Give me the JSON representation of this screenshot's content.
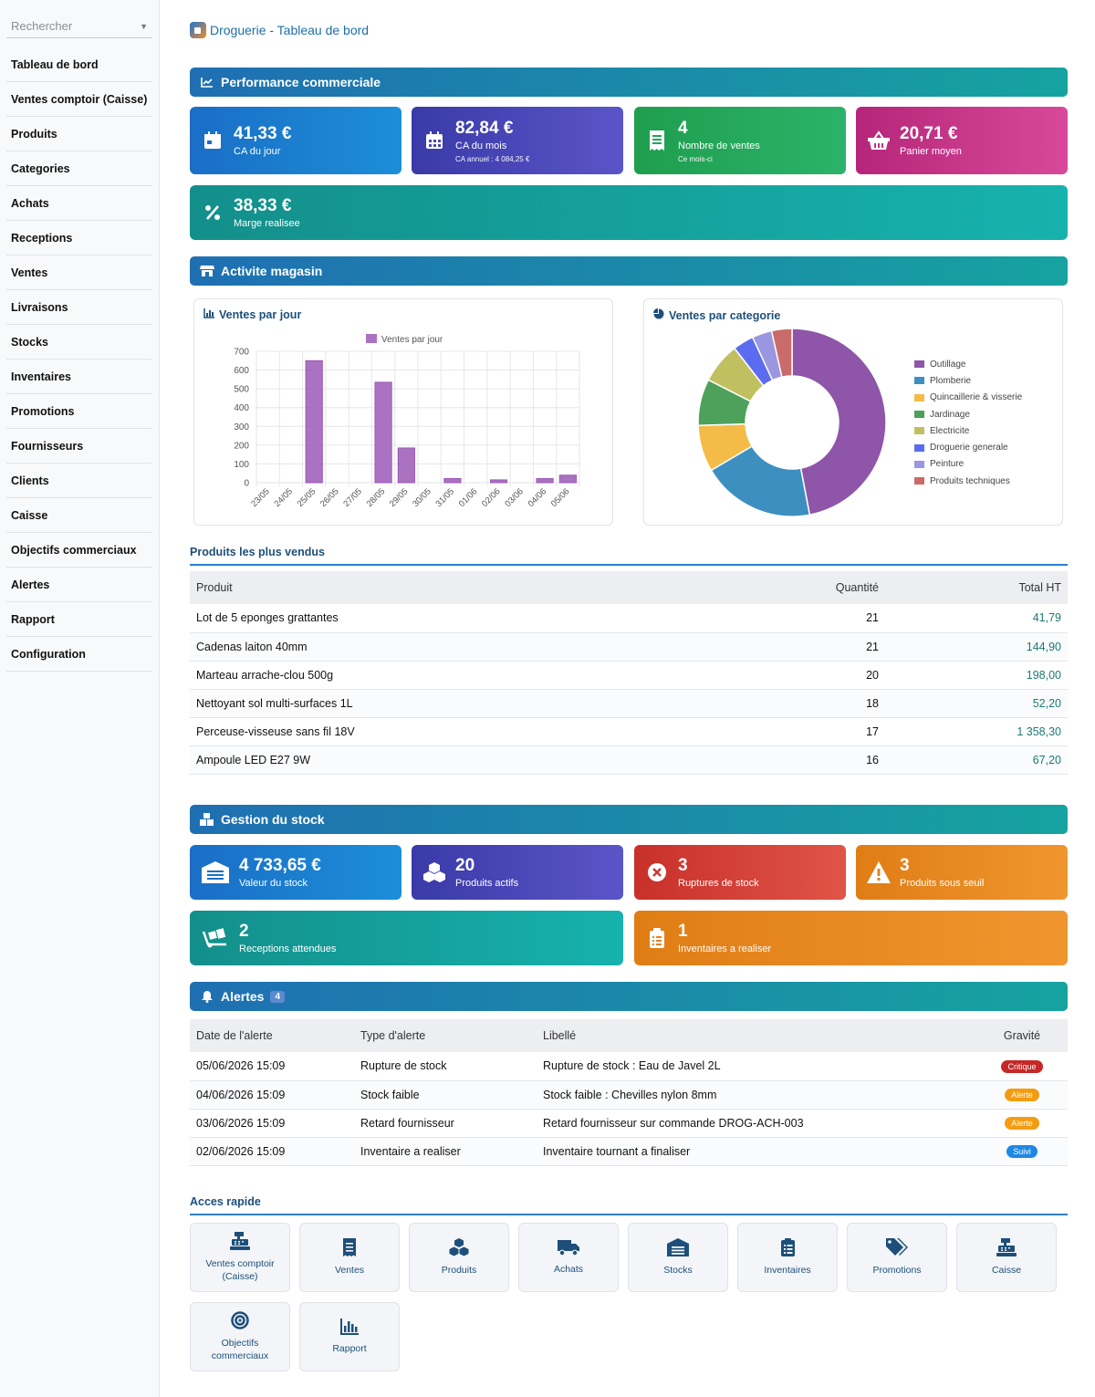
{
  "sidebar": {
    "search_placeholder": "Rechercher",
    "items": [
      {
        "label": "Tableau de bord"
      },
      {
        "label": "Ventes comptoir (Caisse)"
      },
      {
        "label": "Produits"
      },
      {
        "label": "Categories"
      },
      {
        "label": "Achats"
      },
      {
        "label": "Receptions"
      },
      {
        "label": "Ventes"
      },
      {
        "label": "Livraisons"
      },
      {
        "label": "Stocks"
      },
      {
        "label": "Inventaires"
      },
      {
        "label": "Promotions"
      },
      {
        "label": "Fournisseurs"
      },
      {
        "label": "Clients"
      },
      {
        "label": "Caisse"
      },
      {
        "label": "Objectifs commerciaux"
      },
      {
        "label": "Alertes"
      },
      {
        "label": "Rapport"
      },
      {
        "label": "Configuration"
      }
    ]
  },
  "header": {
    "title": "Droguerie - Tableau de bord"
  },
  "performance": {
    "title": "Performance commerciale",
    "cards": [
      {
        "value": "41,33 €",
        "label": "CA du jour",
        "sub": "",
        "icon": "calendar-icon"
      },
      {
        "value": "82,84 €",
        "label": "CA du mois",
        "sub": "CA annuel : 4 084,25 €",
        "icon": "calendar-month-icon"
      },
      {
        "value": "4",
        "label": "Nombre de ventes",
        "sub": "Ce mois-ci",
        "icon": "receipt-icon"
      },
      {
        "value": "20,71 €",
        "label": "Panier moyen",
        "sub": "",
        "icon": "basket-icon"
      },
      {
        "value": "38,33 €",
        "label": "Marge realisee",
        "sub": "",
        "icon": "percent-icon"
      }
    ]
  },
  "activity": {
    "title": "Activite magasin",
    "bar_panel_title": "Ventes par jour",
    "pie_panel_title": "Ventes par categorie"
  },
  "chart_data": [
    {
      "type": "bar",
      "title": "Ventes par jour",
      "categories": [
        "23/05",
        "24/05",
        "25/05",
        "26/05",
        "27/05",
        "28/05",
        "29/05",
        "30/05",
        "31/05",
        "01/06",
        "02/06",
        "03/06",
        "04/06",
        "05/06"
      ],
      "series": [
        {
          "name": "Ventes par jour",
          "values": [
            0,
            0,
            650,
            0,
            0,
            535,
            185,
            0,
            22,
            0,
            15,
            0,
            22,
            40
          ]
        }
      ],
      "ylim": [
        0,
        700
      ],
      "yticks": [
        0,
        100,
        200,
        300,
        400,
        500,
        600,
        700
      ],
      "grid": true,
      "legend": "top",
      "color": "#9b59b6"
    },
    {
      "type": "pie",
      "title": "Ventes par categorie",
      "labels": [
        "Outillage",
        "Plomberie",
        "Quincaillerie & visserie",
        "Jardinage",
        "Electricite",
        "Droguerie generale",
        "Peinture",
        "Produits techniques"
      ],
      "values": [
        47,
        19.5,
        8,
        8,
        7,
        3.6,
        3.4,
        3.5
      ],
      "colors": [
        "#8e55a8",
        "#3d8fc0",
        "#f4bb49",
        "#4ea15a",
        "#c1c061",
        "#5b6cf0",
        "#9b96e0",
        "#c96b6b"
      ],
      "legend": "right",
      "donut": true
    }
  ],
  "top_products": {
    "title": "Produits les plus vendus",
    "columns": [
      "Produit",
      "Quantité",
      "Total HT"
    ],
    "rows": [
      [
        "Lot de 5 eponges grattantes",
        "21",
        "41,79"
      ],
      [
        "Cadenas laiton 40mm",
        "21",
        "144,90"
      ],
      [
        "Marteau arrache-clou 500g",
        "20",
        "198,00"
      ],
      [
        "Nettoyant sol multi-surfaces 1L",
        "18",
        "52,20"
      ],
      [
        "Perceuse-visseuse sans fil 18V",
        "17",
        "1 358,30"
      ],
      [
        "Ampoule LED E27 9W",
        "16",
        "67,20"
      ]
    ]
  },
  "stock": {
    "title": "Gestion du stock",
    "cards": [
      {
        "value": "4 733,65 €",
        "label": "Valeur du stock",
        "icon": "warehouse-icon"
      },
      {
        "value": "20",
        "label": "Produits actifs",
        "icon": "boxes-icon"
      },
      {
        "value": "3",
        "label": "Ruptures de stock",
        "icon": "error-circle-icon"
      },
      {
        "value": "3",
        "label": "Produits sous seuil",
        "icon": "warning-icon"
      },
      {
        "value": "2",
        "label": "Receptions attendues",
        "icon": "dolly-icon"
      },
      {
        "value": "1",
        "label": "Inventaires a realiser",
        "icon": "clipboard-icon"
      }
    ]
  },
  "alerts": {
    "title": "Alertes",
    "count": "4",
    "columns": [
      "Date de l'alerte",
      "Type d'alerte",
      "Libellé",
      "Gravité"
    ],
    "rows": [
      {
        "date": "05/06/2026 15:09",
        "type": "Rupture de stock",
        "label": "Rupture de stock : Eau de Javel 2L",
        "severity": "Critique",
        "color": "#c62828"
      },
      {
        "date": "04/06/2026 15:09",
        "type": "Stock faible",
        "label": "Stock faible : Chevilles nylon 8mm",
        "severity": "Alerte",
        "color": "#f39c12"
      },
      {
        "date": "03/06/2026 15:09",
        "type": "Retard fournisseur",
        "label": "Retard fournisseur sur commande DROG-ACH-003",
        "severity": "Alerte",
        "color": "#f39c12"
      },
      {
        "date": "02/06/2026 15:09",
        "type": "Inventaire a realiser",
        "label": "Inventaire tournant a finaliser",
        "severity": "Suivi",
        "color": "#1e88e5"
      }
    ]
  },
  "quick_access": {
    "title": "Acces rapide",
    "items": [
      {
        "label": "Ventes comptoir (Caisse)",
        "icon": "cash-register-icon"
      },
      {
        "label": "Ventes",
        "icon": "receipt-icon"
      },
      {
        "label": "Produits",
        "icon": "boxes-icon"
      },
      {
        "label": "Achats",
        "icon": "truck-icon"
      },
      {
        "label": "Stocks",
        "icon": "warehouse-icon"
      },
      {
        "label": "Inventaires",
        "icon": "clipboard-list-icon"
      },
      {
        "label": "Promotions",
        "icon": "tags-icon"
      },
      {
        "label": "Caisse",
        "icon": "cash-register-icon"
      },
      {
        "label": "Objectifs commerciaux",
        "icon": "target-icon"
      },
      {
        "label": "Rapport",
        "icon": "bar-chart-icon"
      }
    ]
  }
}
